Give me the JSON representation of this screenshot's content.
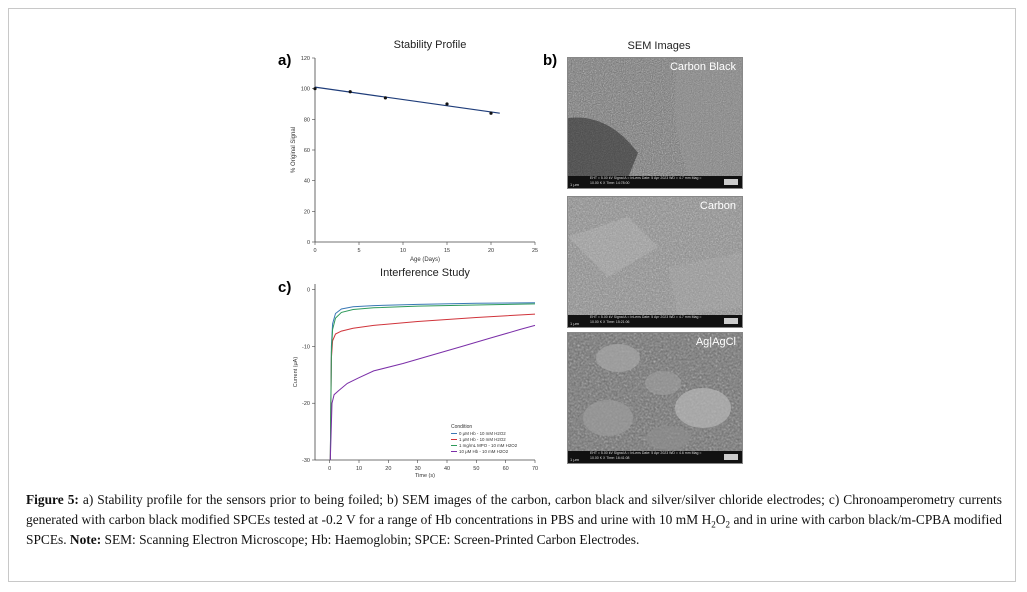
{
  "panels": {
    "a_label": "a)",
    "b_label": "b)",
    "c_label": "c)"
  },
  "chart_data": [
    {
      "type": "line",
      "title": "Stability Profile",
      "xlabel": "Age (Days)",
      "ylabel": "% Original Signal",
      "xlim": [
        0,
        25
      ],
      "ylim": [
        0,
        120
      ],
      "x_ticks": [
        "0",
        "5",
        "10",
        "15",
        "20",
        "25"
      ],
      "y_ticks": [
        "0",
        "20",
        "40",
        "60",
        "80",
        "100",
        "120"
      ],
      "grid": false,
      "series": [
        {
          "points": [
            [
              0,
              100
            ],
            [
              4,
              98
            ],
            [
              8,
              94
            ],
            [
              15,
              90
            ],
            [
              20,
              84
            ]
          ],
          "color": "#1f3d7a"
        }
      ],
      "fit_line": [
        [
          0,
          101
        ],
        [
          21,
          84
        ]
      ]
    },
    {
      "type": "line",
      "title": "Interference Study",
      "xlabel": "Time (s)",
      "ylabel": "Current (μA)",
      "xlim": [
        -5,
        70
      ],
      "ylim": [
        -30,
        1
      ],
      "x_ticks": [
        "0",
        "10",
        "20",
        "30",
        "40",
        "50",
        "60",
        "70"
      ],
      "y_ticks": [
        "0",
        "-10",
        "-20",
        "-30"
      ],
      "legend_title": "Condition",
      "legend_position": "bottom-right",
      "series": [
        {
          "name": "0 μM Hb - 10 mM H2O2",
          "color": "#3a78b5",
          "points": [
            [
              0.2,
              -30
            ],
            [
              0.6,
              -10
            ],
            [
              1,
              -6
            ],
            [
              2,
              -4.2
            ],
            [
              4,
              -3.4
            ],
            [
              8,
              -3.0
            ],
            [
              15,
              -2.8
            ],
            [
              30,
              -2.6
            ],
            [
              50,
              -2.4
            ],
            [
              70,
              -2.3
            ]
          ]
        },
        {
          "name": "1 μM Hb - 10 mM H2O2",
          "color": "#d0343b",
          "points": [
            [
              0.2,
              -30
            ],
            [
              0.6,
              -12
            ],
            [
              1,
              -9
            ],
            [
              2,
              -7.8
            ],
            [
              4,
              -7.3
            ],
            [
              8,
              -6.8
            ],
            [
              15,
              -6.3
            ],
            [
              30,
              -5.6
            ],
            [
              50,
              -4.9
            ],
            [
              70,
              -4.3
            ]
          ]
        },
        {
          "name": "1 mg/mL MPO - 10 mM H2O2",
          "color": "#2e9a5a",
          "points": [
            [
              0.2,
              -30
            ],
            [
              0.6,
              -11
            ],
            [
              1,
              -7
            ],
            [
              2,
              -5
            ],
            [
              4,
              -4
            ],
            [
              8,
              -3.5
            ],
            [
              15,
              -3.2
            ],
            [
              30,
              -2.9
            ],
            [
              50,
              -2.7
            ],
            [
              70,
              -2.5
            ]
          ]
        },
        {
          "name": "10 μM Hb - 10 mM H2O2",
          "color": "#7b2fa8",
          "points": [
            [
              0.2,
              -30
            ],
            [
              0.8,
              -20
            ],
            [
              1.5,
              -18.5
            ],
            [
              3,
              -17.8
            ],
            [
              6,
              -16.5
            ],
            [
              10,
              -15.5
            ],
            [
              15,
              -14.3
            ],
            [
              25,
              -13
            ],
            [
              35,
              -11.5
            ],
            [
              45,
              -10
            ],
            [
              55,
              -8.5
            ],
            [
              65,
              -7
            ],
            [
              70,
              -6.3
            ]
          ]
        }
      ]
    }
  ],
  "sem": {
    "title": "SEM Images",
    "tiles": [
      {
        "label": "Carbon Black",
        "footer": "EHT = 5.00 kV   Signal A = InLens   Date: 5 Apr 2023   WD = 4.7 mm   Mag = 10.00 K X   Time: 14:78:00",
        "scale": "1 μm"
      },
      {
        "label": "Carbon",
        "footer": "EHT = 5.00 kV   Signal A = InLens   Date: 5 Apr 2023   WD = 4.7 mm   Mag = 10.00 K X   Time: 15:21:06",
        "scale": "1 μm"
      },
      {
        "label": "Ag|AgCl",
        "footer": "EHT = 5.00 kV   Signal A = InLens   Date: 5 Apr 2023   WD = 4.6 mm   Mag = 10.00 K X   Time: 16:41:08",
        "scale": "1 μm"
      }
    ]
  },
  "caption": {
    "figure_label": "Figure 5:",
    "text_1": " a) Stability profile for the sensors prior to being foiled; b) SEM images of the carbon, carbon black and silver/silver chloride electrodes; c) Chronoamperometry currents generated with carbon black modified SPCEs tested at -0.2 V for a range of Hb concentrations in PBS and urine with 10 mM H",
    "sub_1": "2",
    "text_2": "O",
    "sub_2": "2",
    "text_3": " and in urine with carbon black/m-CPBA modified SPCEs. ",
    "note_label": "Note:",
    "text_4": " SEM: Scanning Electron Microscope; Hb: Haemoglobin; SPCE: Screen-Printed Carbon Electrodes."
  }
}
